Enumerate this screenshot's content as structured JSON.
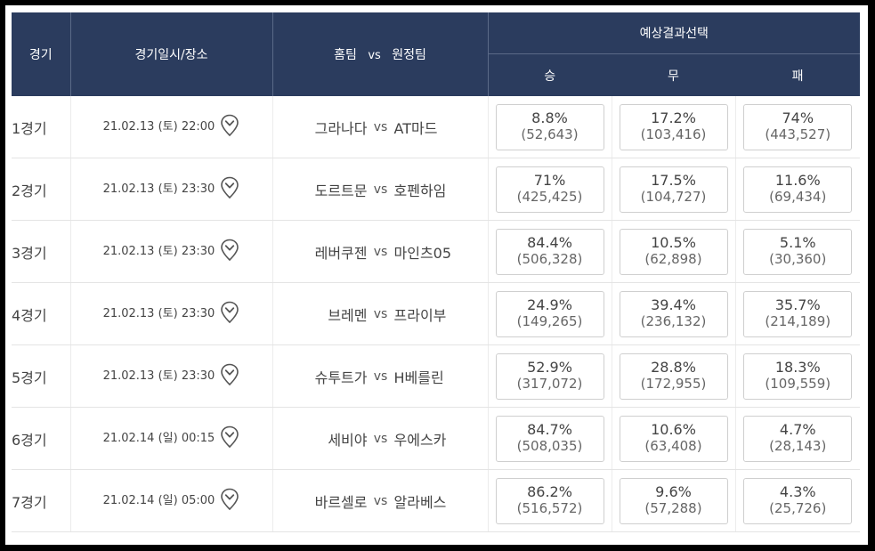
{
  "header": {
    "game": "경기",
    "datetime_venue": "경기일시/장소",
    "home_team": "홈팀",
    "vs": "vs",
    "away_team": "원정팀",
    "prediction": "예상결과선택",
    "win": "승",
    "draw": "무",
    "lose": "패"
  },
  "colors": {
    "header_bg": "#2b3c5e",
    "header_text": "#ffffff",
    "border": "#e4e4e4"
  },
  "icons": {
    "venue": "location-pin-icon"
  },
  "rows": [
    {
      "no": "1경기",
      "datetime": "21.02.13 (토) 22:00",
      "home": "그라나다",
      "vs": "vs",
      "away": "AT마드",
      "win": {
        "pct": "8.8%",
        "count": "(52,643)"
      },
      "draw": {
        "pct": "17.2%",
        "count": "(103,416)"
      },
      "lose": {
        "pct": "74%",
        "count": "(443,527)"
      }
    },
    {
      "no": "2경기",
      "datetime": "21.02.13 (토) 23:30",
      "home": "도르트문",
      "vs": "vs",
      "away": "호펜하임",
      "win": {
        "pct": "71%",
        "count": "(425,425)"
      },
      "draw": {
        "pct": "17.5%",
        "count": "(104,727)"
      },
      "lose": {
        "pct": "11.6%",
        "count": "(69,434)"
      }
    },
    {
      "no": "3경기",
      "datetime": "21.02.13 (토) 23:30",
      "home": "레버쿠젠",
      "vs": "vs",
      "away": "마인츠05",
      "win": {
        "pct": "84.4%",
        "count": "(506,328)"
      },
      "draw": {
        "pct": "10.5%",
        "count": "(62,898)"
      },
      "lose": {
        "pct": "5.1%",
        "count": "(30,360)"
      }
    },
    {
      "no": "4경기",
      "datetime": "21.02.13 (토) 23:30",
      "home": "브레멘",
      "vs": "vs",
      "away": "프라이부",
      "win": {
        "pct": "24.9%",
        "count": "(149,265)"
      },
      "draw": {
        "pct": "39.4%",
        "count": "(236,132)"
      },
      "lose": {
        "pct": "35.7%",
        "count": "(214,189)"
      }
    },
    {
      "no": "5경기",
      "datetime": "21.02.13 (토) 23:30",
      "home": "슈투트가",
      "vs": "vs",
      "away": "H베를린",
      "win": {
        "pct": "52.9%",
        "count": "(317,072)"
      },
      "draw": {
        "pct": "28.8%",
        "count": "(172,955)"
      },
      "lose": {
        "pct": "18.3%",
        "count": "(109,559)"
      }
    },
    {
      "no": "6경기",
      "datetime": "21.02.14 (일) 00:15",
      "home": "세비야",
      "vs": "vs",
      "away": "우에스카",
      "win": {
        "pct": "84.7%",
        "count": "(508,035)"
      },
      "draw": {
        "pct": "10.6%",
        "count": "(63,408)"
      },
      "lose": {
        "pct": "4.7%",
        "count": "(28,143)"
      }
    },
    {
      "no": "7경기",
      "datetime": "21.02.14 (일) 05:00",
      "home": "바르셀로",
      "vs": "vs",
      "away": "알라베스",
      "win": {
        "pct": "86.2%",
        "count": "(516,572)"
      },
      "draw": {
        "pct": "9.6%",
        "count": "(57,288)"
      },
      "lose": {
        "pct": "4.3%",
        "count": "(25,726)"
      }
    }
  ]
}
